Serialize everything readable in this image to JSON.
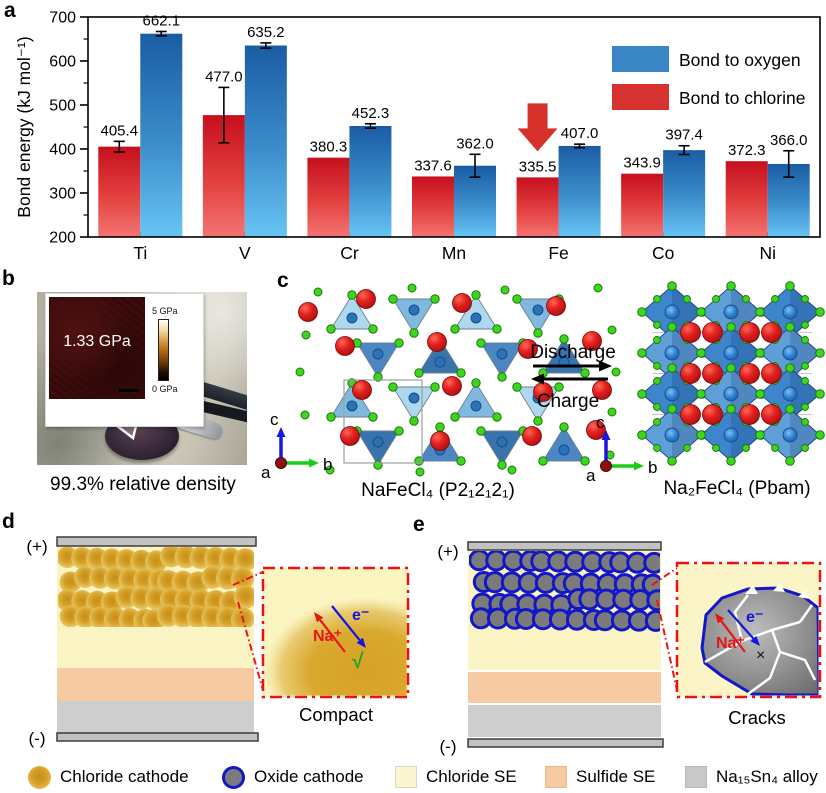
{
  "panel_labels": {
    "a": "a",
    "b": "b",
    "c": "c",
    "d": "d",
    "e": "e"
  },
  "chart_data": {
    "type": "bar",
    "title": "",
    "ylabel": "Bond energy (kJ mol⁻¹)",
    "xlabel": "",
    "ylim": [
      200,
      700
    ],
    "yticks": [
      200,
      300,
      400,
      500,
      600,
      700
    ],
    "minor_ticks": [
      250,
      350,
      450,
      550,
      650
    ],
    "categories": [
      "Ti",
      "V",
      "Cr",
      "Mn",
      "Fe",
      "Co",
      "Ni"
    ],
    "series": [
      {
        "name": "Bond to chlorine",
        "color": "#d63230",
        "gradient_top": "#c60f1e",
        "gradient_bottom": "#f47472",
        "values": [
          405.4,
          477.0,
          380.3,
          337.6,
          335.5,
          343.9,
          372.3
        ],
        "errors": [
          12,
          63,
          0,
          0,
          0,
          0,
          0
        ]
      },
      {
        "name": "Bond to oxygen",
        "color": "#3a86c5",
        "gradient_top": "#1a5ca4",
        "gradient_bottom": "#68c4f5",
        "values": [
          662.1,
          635.2,
          452.3,
          362.0,
          407.0,
          397.4,
          366.0
        ],
        "errors": [
          5,
          6,
          5,
          26,
          4,
          10,
          30
        ]
      }
    ],
    "legend": [
      "Bond to oxygen",
      "Bond to chlorine"
    ],
    "legend_position": "upper right",
    "grid": false,
    "annotation": {
      "type": "down-arrow",
      "category": "Fe",
      "series": "Bond to chlorine",
      "color": "#d6312b"
    }
  },
  "panel_b": {
    "inset_value": "1.33 GPa",
    "colorbar_max": "5 GPa",
    "colorbar_min": "0 GPa",
    "caption": "99.3% relative density"
  },
  "panel_c": {
    "discharge": "Discharge",
    "charge": "Charge",
    "left_formula": "NaFeCl₄ (P2₁2₁2₁)",
    "right_formula": "Na₂FeCl₄ (Pbam)",
    "axis": {
      "a": "a",
      "b": "b",
      "c": "c"
    }
  },
  "panel_d": {
    "plus": "(+)",
    "minus": "(-)",
    "na_ion": "Na⁺",
    "electron": "e⁻",
    "check": "√",
    "caption": "Compact"
  },
  "panel_e": {
    "plus": "(+)",
    "minus": "(-)",
    "na_ion": "Na⁺",
    "electron": "e⁻",
    "cross": "×",
    "caption": "Cracks"
  },
  "legend": {
    "items": [
      {
        "swatch": "gold-circle",
        "label": "Chloride cathode"
      },
      {
        "swatch": "gray-blue-circle",
        "label": "Oxide cathode"
      },
      {
        "swatch": "pale-yellow-square",
        "label": "Chloride SE"
      },
      {
        "swatch": "peach-square",
        "label": "Sulfide SE"
      },
      {
        "swatch": "gray-square",
        "label": "Na₁₅Sn₄ alloy"
      }
    ]
  },
  "colors": {
    "bar_blue": "#3a86c5",
    "bar_red": "#d63230",
    "callout_red": "#ee1111",
    "chloride_se": "#faf3c4",
    "sulfide_se": "#f6cba4",
    "alloy_gray": "#cecece",
    "oxide_border_blue": "#1417c8"
  }
}
